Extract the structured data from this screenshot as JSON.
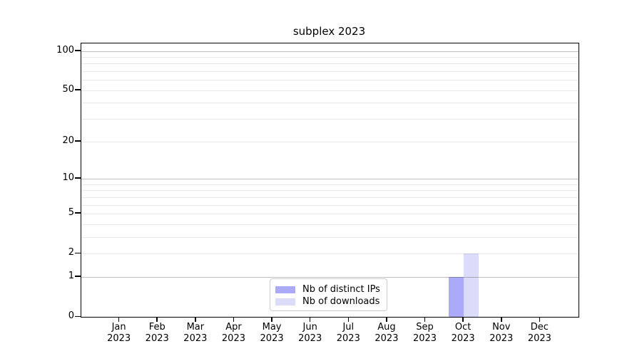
{
  "chart_data": {
    "type": "bar",
    "title": "subplex 2023",
    "categories": [
      {
        "month": "Jan",
        "year": "2023"
      },
      {
        "month": "Feb",
        "year": "2023"
      },
      {
        "month": "Mar",
        "year": "2023"
      },
      {
        "month": "Apr",
        "year": "2023"
      },
      {
        "month": "May",
        "year": "2023"
      },
      {
        "month": "Jun",
        "year": "2023"
      },
      {
        "month": "Jul",
        "year": "2023"
      },
      {
        "month": "Aug",
        "year": "2023"
      },
      {
        "month": "Sep",
        "year": "2023"
      },
      {
        "month": "Oct",
        "year": "2023"
      },
      {
        "month": "Nov",
        "year": "2023"
      },
      {
        "month": "Dec",
        "year": "2023"
      }
    ],
    "series": [
      {
        "name": "Nb of distinct IPs",
        "color": "#aaaaf8",
        "values": [
          0,
          0,
          0,
          0,
          0,
          0,
          0,
          0,
          0,
          1,
          0,
          0
        ]
      },
      {
        "name": "Nb of downloads",
        "color": "#dbdbfa",
        "values": [
          0,
          0,
          0,
          0,
          0,
          0,
          0,
          0,
          0,
          2,
          0,
          0
        ]
      }
    ],
    "xlabel": "",
    "ylabel": "",
    "y_scale": "log1p",
    "ylim": [
      0,
      114
    ],
    "y_major_ticks": [
      0,
      1,
      2,
      5,
      10,
      20,
      50,
      100
    ],
    "y_decade_gridlines": [
      1,
      10,
      100
    ],
    "y_minor_gridlines": [
      2,
      3,
      4,
      5,
      6,
      7,
      8,
      9,
      20,
      30,
      40,
      50,
      60,
      70,
      80,
      90
    ],
    "grid": true,
    "legend_position": "lower center",
    "colors": {
      "axis": "#000000",
      "grid_major": "rgba(0,0,0,0.25)",
      "grid_minor": "rgba(0,0,0,0.09)",
      "legend_border": "#cccccc",
      "background": "#ffffff"
    }
  }
}
